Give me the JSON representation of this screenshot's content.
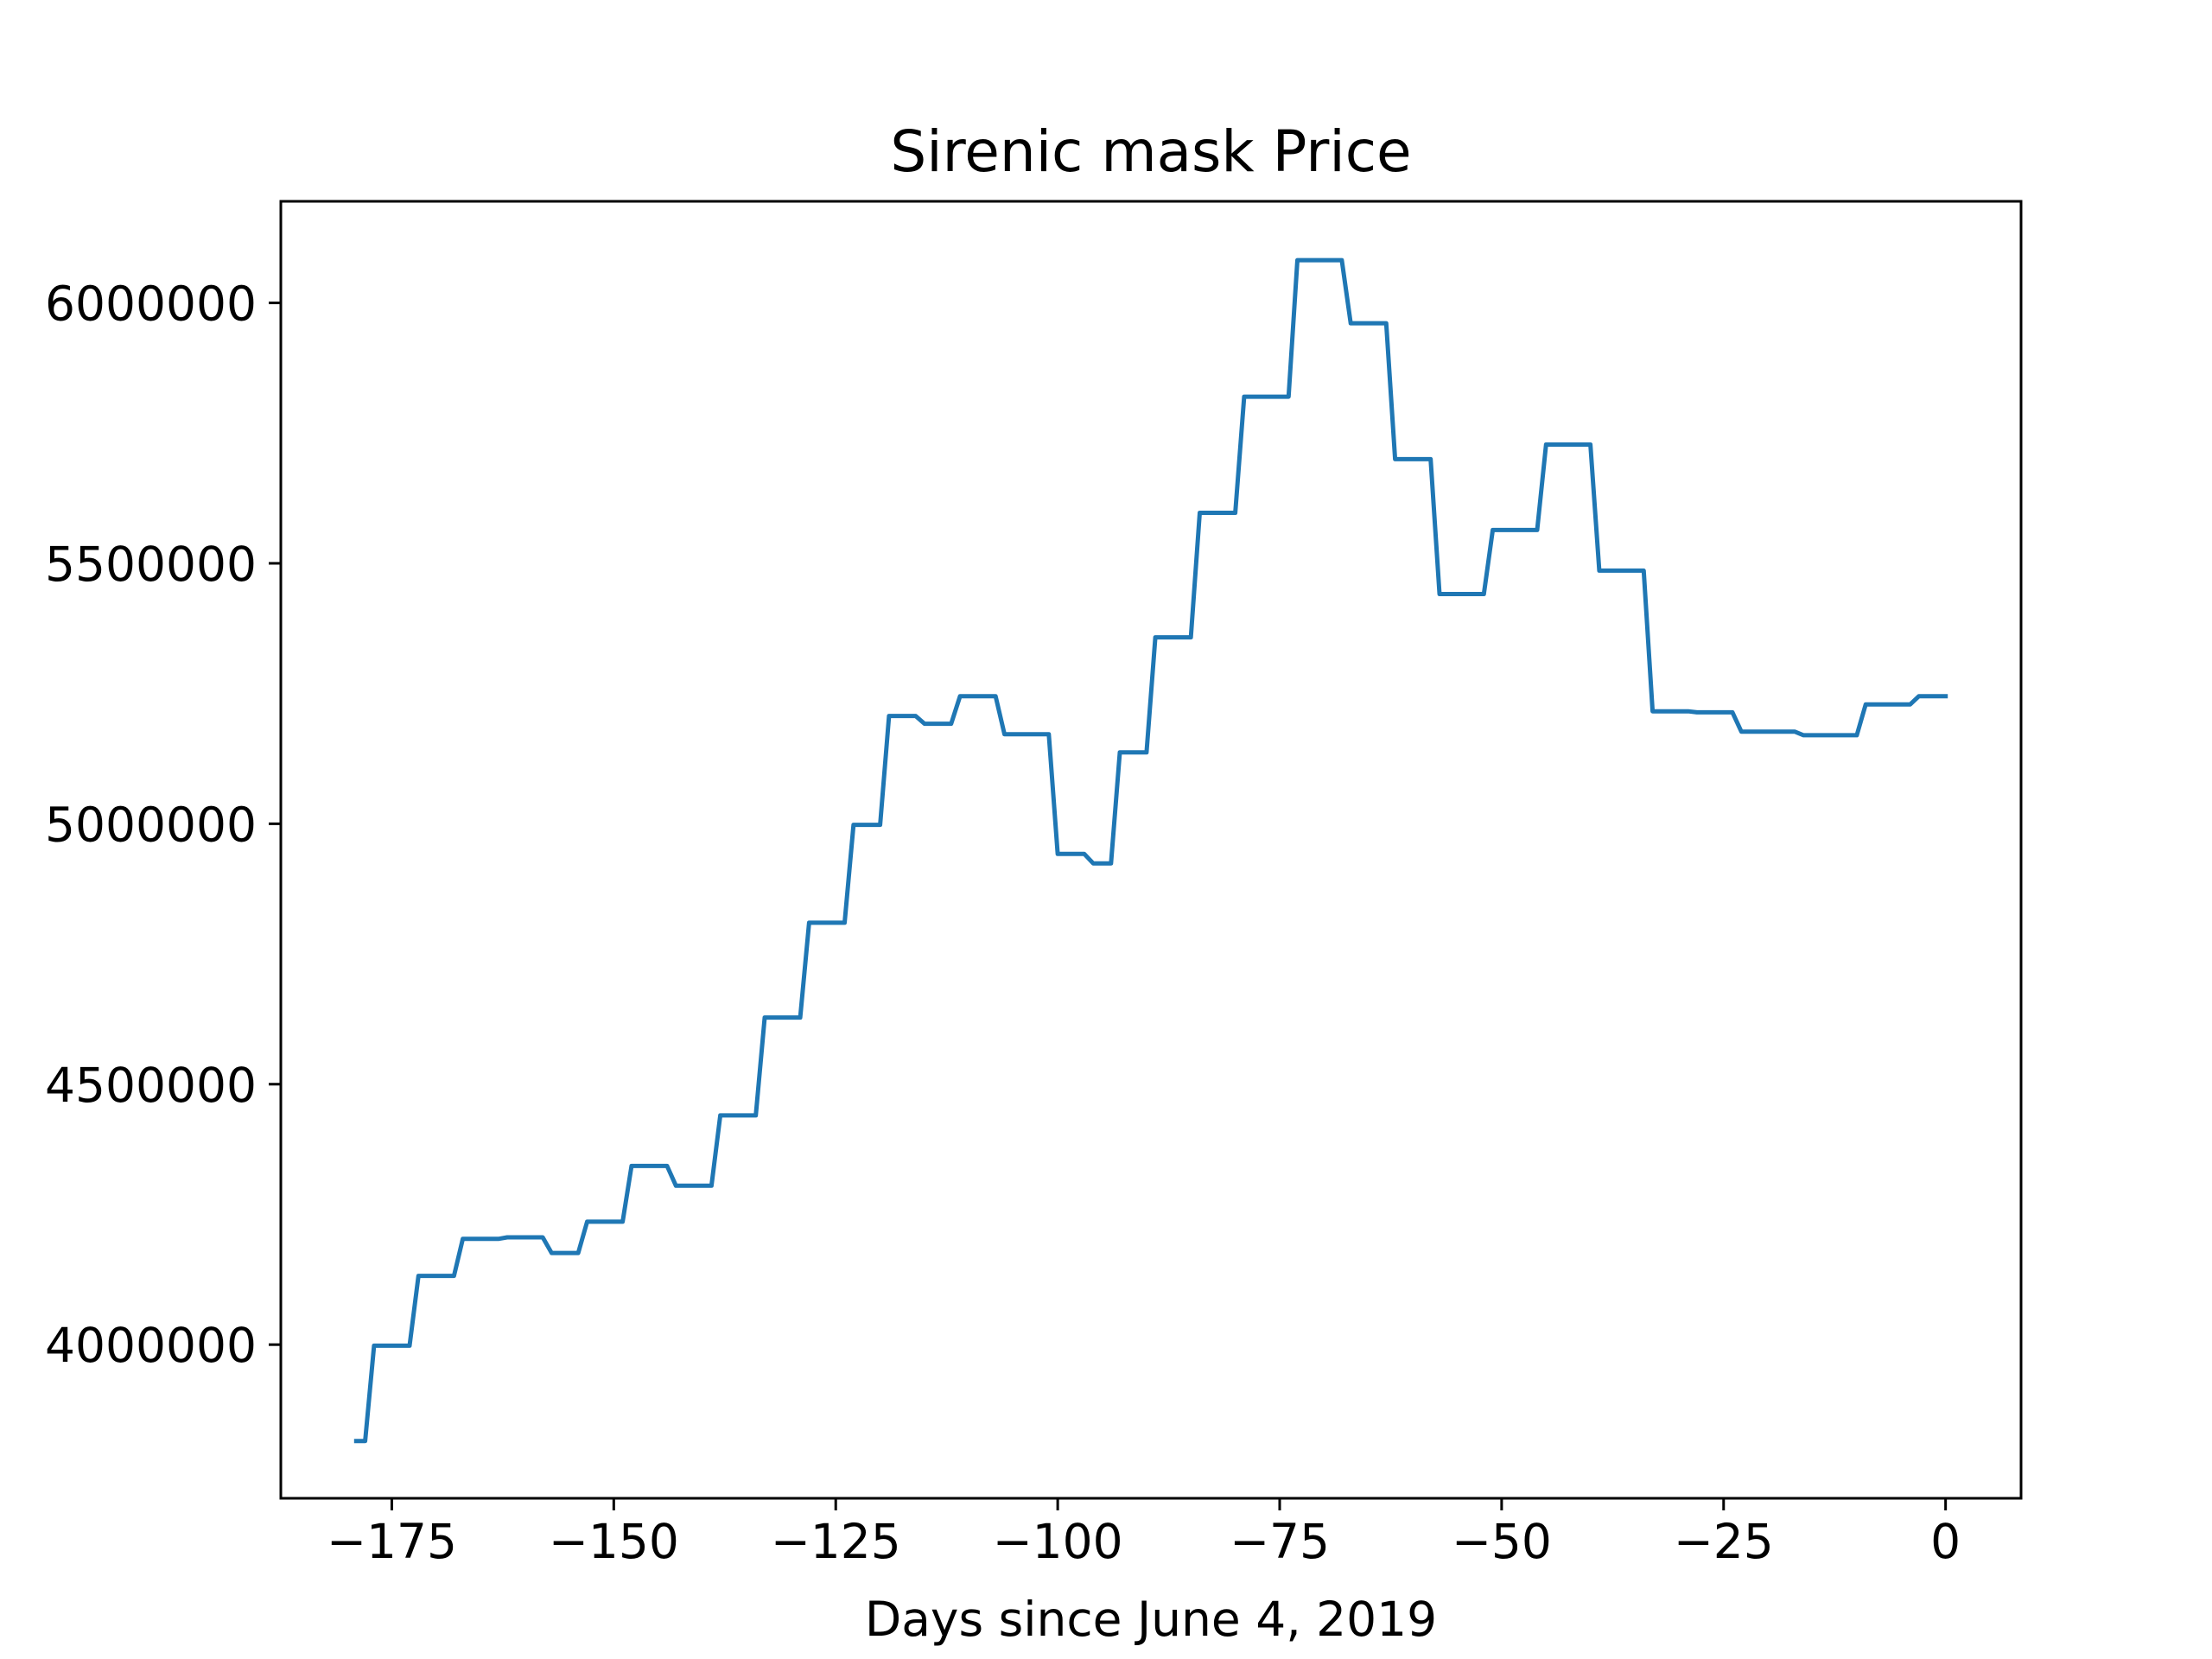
{
  "chart_data": {
    "type": "line",
    "title": "Sirenic mask Price",
    "xlabel": "Days since June 4, 2019",
    "ylabel": "",
    "xlim": [
      -187.5,
      8.5
    ],
    "ylim": [
      3705000,
      6195000
    ],
    "xticks": [
      -175,
      -150,
      -125,
      -100,
      -75,
      -50,
      -25,
      0
    ],
    "xtick_labels": [
      "−175",
      "−150",
      "−125",
      "−100",
      "−75",
      "−50",
      "−25",
      "0"
    ],
    "yticks": [
      4000000,
      4500000,
      5000000,
      5500000,
      6000000
    ],
    "ytick_labels": [
      "4000000",
      "4500000",
      "5000000",
      "5500000",
      "6000000"
    ],
    "grid": false,
    "legend": "none",
    "series": [
      {
        "color": "#1f77b4",
        "x": [
          -179,
          -178,
          -177,
          -173,
          -172,
          -168,
          -167,
          -163,
          -162,
          -158,
          -157,
          -154,
          -153,
          -149,
          -148,
          -144,
          -143,
          -139,
          -138,
          -134,
          -133,
          -129,
          -128,
          -124,
          -123,
          -120,
          -119,
          -116,
          -115,
          -112,
          -111,
          -107,
          -106,
          -101,
          -100,
          -97,
          -96,
          -94,
          -93,
          -90,
          -89,
          -85,
          -84,
          -80,
          -79,
          -74,
          -73,
          -68,
          -67,
          -63,
          -62,
          -58,
          -57,
          -52,
          -51,
          -46,
          -45,
          -40,
          -39,
          -34,
          -33,
          -29,
          -28,
          -24,
          -23,
          -17,
          -16,
          -10,
          -9,
          -4,
          -3,
          0
        ],
        "y": [
          3815000,
          3815000,
          3998000,
          3998000,
          4132000,
          4132000,
          4203000,
          4203000,
          4206000,
          4206000,
          4176000,
          4176000,
          4236000,
          4236000,
          4343000,
          4343000,
          4305000,
          4305000,
          4440000,
          4440000,
          4628000,
          4628000,
          4810000,
          4810000,
          4998000,
          4998000,
          5207000,
          5207000,
          5192000,
          5192000,
          5245000,
          5245000,
          5172000,
          5172000,
          4942000,
          4942000,
          4924000,
          4924000,
          5137000,
          5137000,
          5358000,
          5358000,
          5597000,
          5597000,
          5820000,
          5820000,
          6082000,
          6082000,
          5961000,
          5961000,
          5700000,
          5700000,
          5441000,
          5441000,
          5564000,
          5564000,
          5728000,
          5728000,
          5486000,
          5486000,
          5216000,
          5216000,
          5214000,
          5214000,
          5177000,
          5177000,
          5170000,
          5170000,
          5229000,
          5229000,
          5245000,
          5245000
        ]
      }
    ]
  }
}
